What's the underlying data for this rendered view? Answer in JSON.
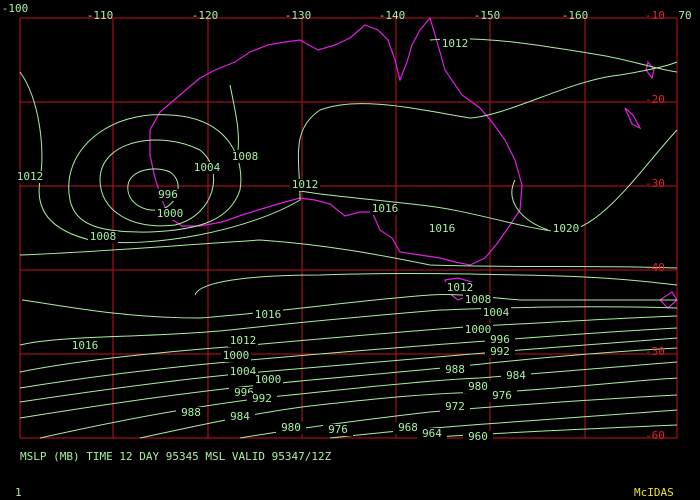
{
  "map": {
    "lon_labels": [
      "-100",
      "-110",
      "-120",
      "-130",
      "-140",
      "-150",
      "-160",
      "70"
    ],
    "lat_labels": [
      "-10",
      "-20",
      "-30",
      "-40",
      "-50",
      "-60"
    ],
    "contour_labels": [
      1012,
      1004,
      1008,
      996,
      1000,
      1012,
      1008,
      1012,
      1016,
      1016,
      1020,
      1012,
      1008,
      1004,
      1016,
      1000,
      996,
      992,
      1012,
      1016,
      1000,
      1004,
      1000,
      988,
      984,
      980,
      996,
      992,
      976,
      972,
      988,
      984,
      980,
      976,
      968,
      964,
      960
    ],
    "caption": "MSLP (MB) TIME 12 DAY 95345 MSL VALID 95347/12Z",
    "footer": {
      "page": "1",
      "brand": "McIDAS"
    }
  }
}
